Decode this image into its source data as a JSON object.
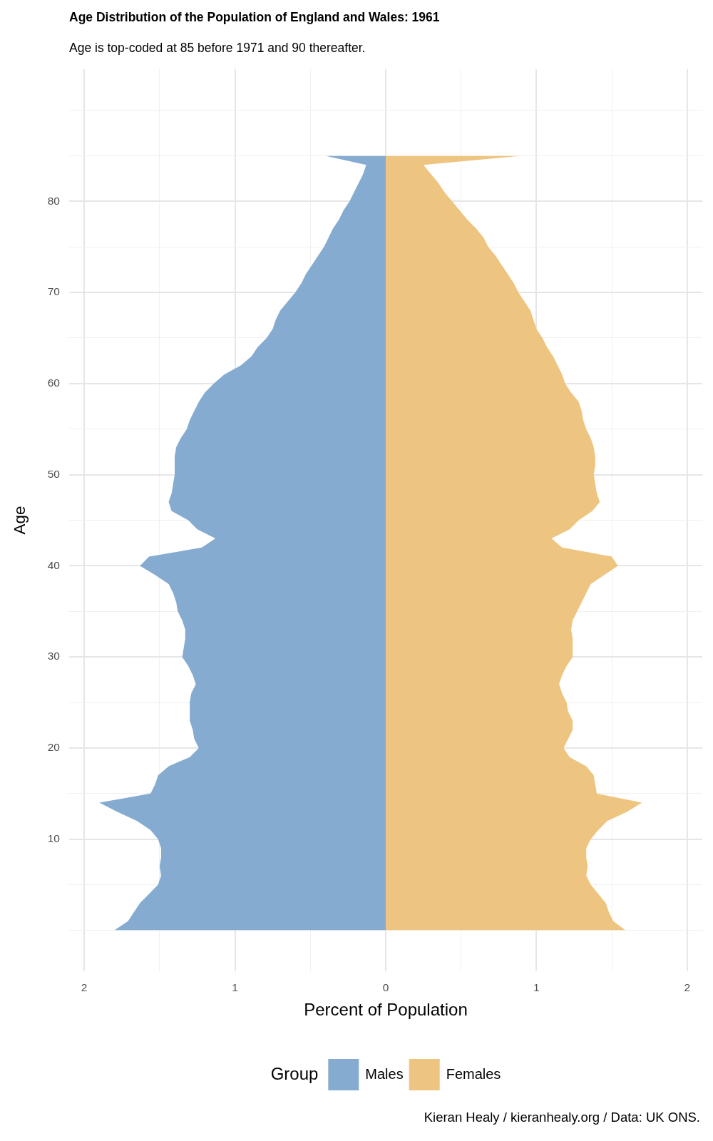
{
  "chart_data": {
    "type": "area",
    "orientation": "horizontal",
    "title": "Age Distribution of the Population of England and Wales: 1961",
    "subtitle": "Age is top-coded at 85 before 1971 and 90 thereafter.",
    "xlabel": "Percent of Population",
    "ylabel": "Age",
    "legend_title": "Group",
    "annotations": [
      "Kieran Healy / kieranhealy.org / Data: UK ONS."
    ],
    "x": [
      0,
      1,
      2,
      3,
      4,
      5,
      6,
      7,
      8,
      9,
      10,
      11,
      12,
      13,
      14,
      15,
      16,
      17,
      18,
      19,
      20,
      21,
      22,
      23,
      24,
      25,
      26,
      27,
      28,
      29,
      30,
      31,
      32,
      33,
      34,
      35,
      36,
      37,
      38,
      39,
      40,
      41,
      42,
      43,
      44,
      45,
      46,
      47,
      48,
      49,
      50,
      51,
      52,
      53,
      54,
      55,
      56,
      57,
      58,
      59,
      60,
      61,
      62,
      63,
      64,
      65,
      66,
      67,
      68,
      69,
      70,
      71,
      72,
      73,
      74,
      75,
      76,
      77,
      78,
      79,
      80,
      81,
      82,
      83,
      84,
      85
    ],
    "series": [
      {
        "name": "Males",
        "color": "#85acd0",
        "values": [
          -1.8,
          -1.71,
          -1.67,
          -1.63,
          -1.57,
          -1.51,
          -1.49,
          -1.5,
          -1.49,
          -1.49,
          -1.51,
          -1.56,
          -1.65,
          -1.78,
          -1.9,
          -1.56,
          -1.53,
          -1.51,
          -1.44,
          -1.3,
          -1.24,
          -1.27,
          -1.28,
          -1.3,
          -1.3,
          -1.3,
          -1.29,
          -1.26,
          -1.28,
          -1.31,
          -1.35,
          -1.34,
          -1.33,
          -1.33,
          -1.35,
          -1.38,
          -1.39,
          -1.41,
          -1.44,
          -1.53,
          -1.63,
          -1.57,
          -1.22,
          -1.13,
          -1.25,
          -1.31,
          -1.42,
          -1.44,
          -1.42,
          -1.41,
          -1.4,
          -1.4,
          -1.4,
          -1.39,
          -1.36,
          -1.32,
          -1.3,
          -1.27,
          -1.24,
          -1.2,
          -1.14,
          -1.07,
          -0.96,
          -0.89,
          -0.85,
          -0.79,
          -0.75,
          -0.73,
          -0.7,
          -0.65,
          -0.6,
          -0.56,
          -0.53,
          -0.49,
          -0.45,
          -0.41,
          -0.38,
          -0.35,
          -0.31,
          -0.28,
          -0.24,
          -0.21,
          -0.18,
          -0.15,
          -0.13,
          -0.4
        ]
      },
      {
        "name": "Females",
        "color": "#eec580",
        "values": [
          1.59,
          1.51,
          1.48,
          1.46,
          1.41,
          1.36,
          1.33,
          1.34,
          1.33,
          1.33,
          1.36,
          1.41,
          1.47,
          1.6,
          1.7,
          1.4,
          1.39,
          1.38,
          1.33,
          1.22,
          1.18,
          1.21,
          1.24,
          1.24,
          1.21,
          1.2,
          1.17,
          1.15,
          1.17,
          1.2,
          1.24,
          1.24,
          1.24,
          1.23,
          1.24,
          1.27,
          1.3,
          1.33,
          1.36,
          1.45,
          1.54,
          1.5,
          1.17,
          1.1,
          1.22,
          1.28,
          1.37,
          1.42,
          1.4,
          1.39,
          1.38,
          1.39,
          1.39,
          1.38,
          1.36,
          1.33,
          1.31,
          1.3,
          1.28,
          1.23,
          1.19,
          1.17,
          1.14,
          1.11,
          1.07,
          1.04,
          1.0,
          0.98,
          0.96,
          0.92,
          0.88,
          0.85,
          0.81,
          0.77,
          0.73,
          0.68,
          0.65,
          0.6,
          0.54,
          0.49,
          0.44,
          0.39,
          0.35,
          0.3,
          0.25,
          0.9
        ]
      }
    ],
    "xlim": [
      -2.1,
      2.1
    ],
    "xticks": [
      {
        "value": -2,
        "label": "2"
      },
      {
        "value": -1.5,
        "label": null
      },
      {
        "value": -1,
        "label": "1"
      },
      {
        "value": -0.5,
        "label": null
      },
      0,
      {
        "value": 0.5,
        "label": null
      },
      1,
      {
        "value": 1.5,
        "label": null
      },
      2
    ],
    "ylim": [
      -4.5,
      94.5
    ],
    "yticks": [
      {
        "value": 0,
        "label": null
      },
      {
        "value": 5,
        "label": null
      },
      10,
      {
        "value": 15,
        "label": null
      },
      20,
      {
        "value": 25,
        "label": null
      },
      30,
      {
        "value": 35,
        "label": null
      },
      40,
      {
        "value": 45,
        "label": null
      },
      50,
      {
        "value": 55,
        "label": null
      },
      60,
      {
        "value": 65,
        "label": null
      },
      70,
      {
        "value": 75,
        "label": null
      },
      80,
      {
        "value": 85,
        "label": null
      },
      {
        "value": 90,
        "label": null
      }
    ],
    "grid": true,
    "legend": "bottom"
  }
}
